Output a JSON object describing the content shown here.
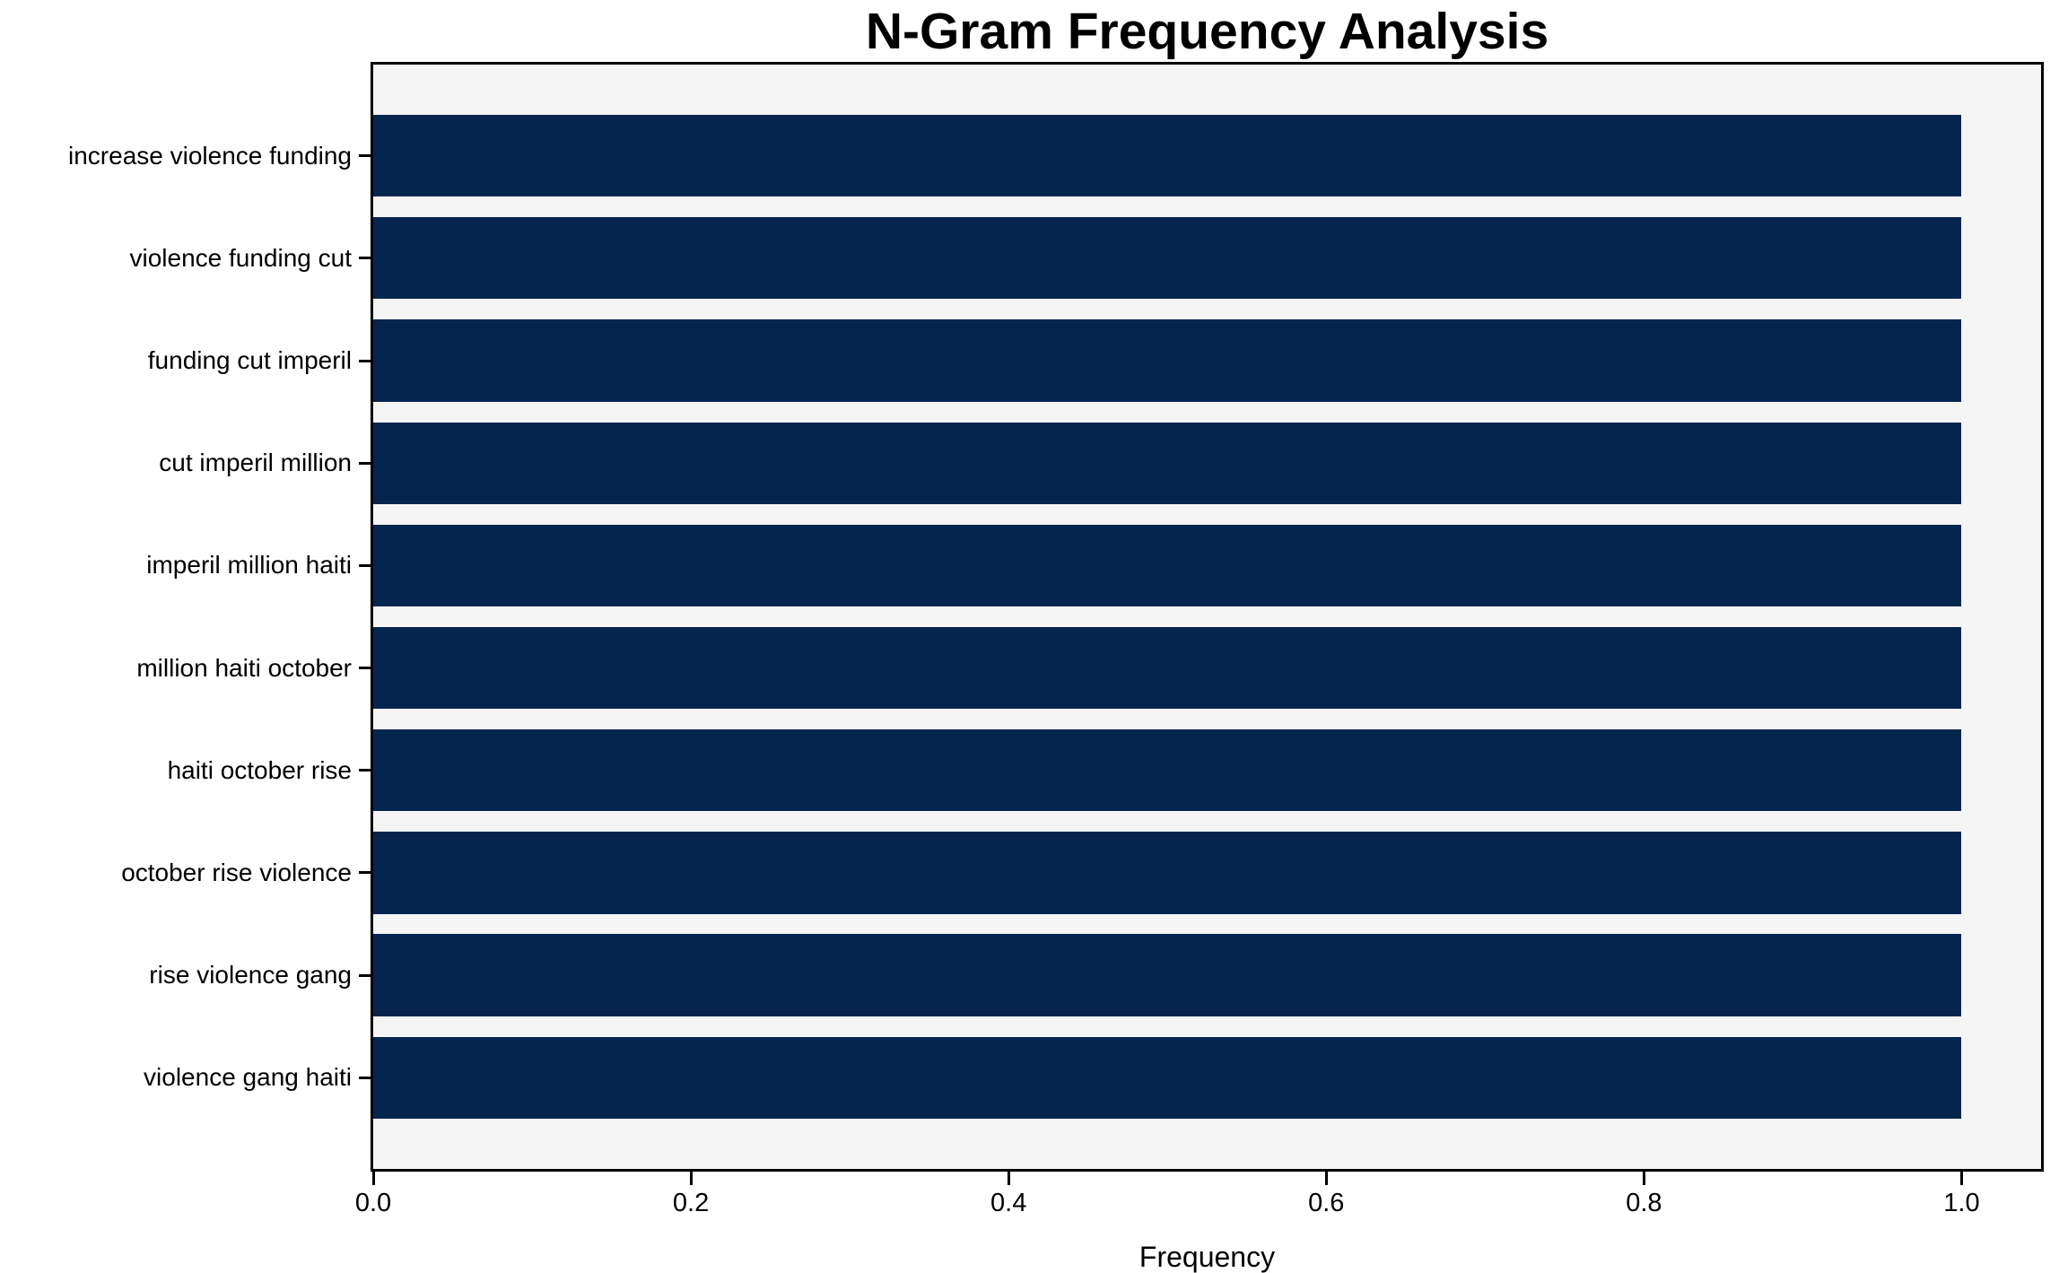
{
  "chart_data": {
    "type": "bar",
    "orientation": "horizontal",
    "title": "N-Gram Frequency Analysis",
    "xlabel": "Frequency",
    "ylabel": "",
    "categories": [
      "increase violence funding",
      "violence funding cut",
      "funding cut imperil",
      "cut imperil million",
      "imperil million haiti",
      "million haiti october",
      "haiti october rise",
      "october rise violence",
      "rise violence gang",
      "violence gang haiti"
    ],
    "values": [
      1.0,
      1.0,
      1.0,
      1.0,
      1.0,
      1.0,
      1.0,
      1.0,
      1.0,
      1.0
    ],
    "xticks": [
      "0.0",
      "0.2",
      "0.4",
      "0.6",
      "0.8",
      "1.0"
    ],
    "xtick_values": [
      0.0,
      0.2,
      0.4,
      0.6,
      0.8,
      1.0
    ],
    "xlim": [
      0,
      1.05
    ],
    "bar_height_fraction": 0.8,
    "grid": false,
    "legend": null,
    "colors": {
      "bar": "#05254e",
      "plot_background": "#f5f5f5",
      "figure_background": "#ffffff",
      "spine": "#000000",
      "text": "#000000"
    }
  }
}
